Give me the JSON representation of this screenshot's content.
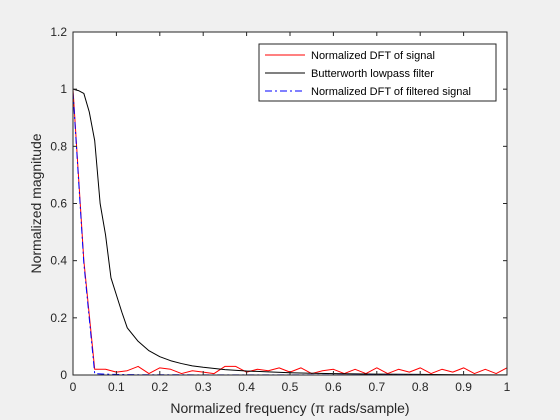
{
  "chart_data": {
    "type": "line",
    "title": "",
    "xlabel": "Normalized frequency (π rads/sample)",
    "ylabel": "Normalized magnitude",
    "xlim": [
      0,
      1
    ],
    "ylim": [
      0,
      1.2
    ],
    "xticks": [
      0,
      0.1,
      0.2,
      0.3,
      0.4,
      0.5,
      0.6,
      0.7,
      0.8,
      0.9,
      1
    ],
    "xtick_labels": [
      "0",
      "0.1",
      "0.2",
      "0.3",
      "0.4",
      "0.5",
      "0.6",
      "0.7",
      "0.8",
      "0.9",
      "1"
    ],
    "yticks": [
      0,
      0.2,
      0.4,
      0.6,
      0.8,
      1,
      1.2
    ],
    "ytick_labels": [
      "0",
      "0.2",
      "0.4",
      "0.6",
      "0.8",
      "1",
      "1.2"
    ],
    "grid": false,
    "legend_position": "top-right",
    "series": [
      {
        "name": "Normalized DFT of signal",
        "color": "#ff0000",
        "linestyle": "solid",
        "x": [
          0,
          0.025,
          0.05,
          0.075,
          0.1,
          0.125,
          0.15,
          0.175,
          0.2,
          0.225,
          0.25,
          0.275,
          0.3,
          0.325,
          0.35,
          0.375,
          0.4,
          0.425,
          0.45,
          0.475,
          0.5,
          0.525,
          0.55,
          0.575,
          0.6,
          0.625,
          0.65,
          0.675,
          0.7,
          0.725,
          0.75,
          0.775,
          0.8,
          0.825,
          0.85,
          0.875,
          0.9,
          0.925,
          0.95,
          0.975,
          1
        ],
        "y": [
          1.0,
          0.4,
          0.02,
          0.02,
          0.01,
          0.015,
          0.03,
          0.005,
          0.025,
          0.02,
          0.005,
          0.015,
          0.01,
          0.005,
          0.03,
          0.03,
          0.01,
          0.02,
          0.015,
          0.025,
          0.01,
          0.025,
          0.005,
          0.015,
          0.02,
          0.005,
          0.02,
          0.005,
          0.025,
          0.005,
          0.02,
          0.01,
          0.025,
          0.005,
          0.02,
          0.01,
          0.025,
          0.005,
          0.02,
          0.005,
          0.025
        ]
      },
      {
        "name": "Butterworth lowpass filter",
        "color": "#000000",
        "linestyle": "solid",
        "x": [
          0,
          0.0125,
          0.025,
          0.0375,
          0.05,
          0.0625,
          0.075,
          0.0875,
          0.1,
          0.1125,
          0.125,
          0.15,
          0.175,
          0.2,
          0.225,
          0.25,
          0.275,
          0.3,
          0.35,
          0.4,
          0.45,
          0.5,
          0.55,
          0.6,
          0.7,
          0.8,
          0.9,
          1
        ],
        "y": [
          1.0,
          0.995,
          0.985,
          0.92,
          0.82,
          0.6,
          0.49,
          0.34,
          0.28,
          0.22,
          0.165,
          0.118,
          0.085,
          0.064,
          0.05,
          0.04,
          0.032,
          0.027,
          0.019,
          0.014,
          0.011,
          0.008,
          0.006,
          0.005,
          0.003,
          0.002,
          0.001,
          0.0005
        ]
      },
      {
        "name": "Normalized DFT of filtered signal",
        "color": "#0000ff",
        "linestyle": "dashdot",
        "x": [
          0,
          0.025,
          0.05,
          0.075,
          0.1,
          0.15,
          0.2,
          0.3,
          0.4,
          0.5,
          0.6,
          0.7,
          0.8,
          0.9,
          1
        ],
        "y": [
          0.99,
          0.39,
          0.005,
          0.003,
          0.002,
          0.001,
          0.001,
          0.0005,
          0.0005,
          0.0005,
          0.0003,
          0.0003,
          0.0002,
          0.0002,
          0.0002
        ]
      }
    ]
  }
}
